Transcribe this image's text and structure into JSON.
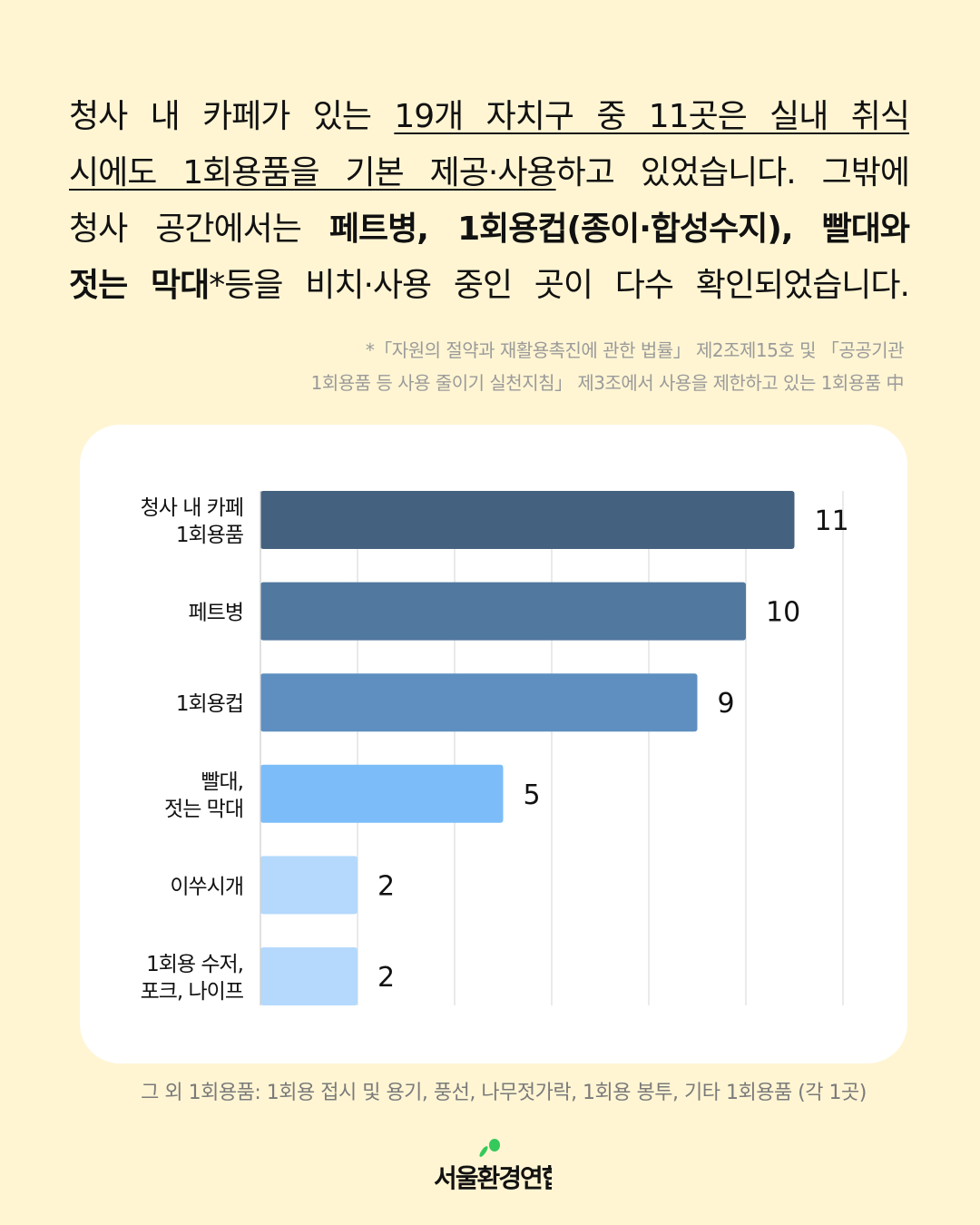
{
  "headline": {
    "l1a": "청사 내 카페가 있는 ",
    "l1b": "19개 자치구 중 11곳은 실내 취식",
    "l2a": "시에도 1회용품을 기본 제공·사용",
    "l2b": "하고 있었습니다. 그밖에",
    "l3a": "청사 공간에서는 ",
    "l3b": "페트병, 1회용컵(종이·합성수지), 빨대와",
    "l4a": "젓는 막대",
    "l4b": "*등을 비치·사용 중인 곳이 다수 확인되었습니다."
  },
  "note": {
    "line1": "*「자원의 절약과 재활용촉진에 관한 법률」 제2조제15호 및 「공공기관",
    "line2": "1회용품 등 사용 줄이기 실천지침」 제3조에서 사용을 제한하고 있는 1회용품 中"
  },
  "footer": "그 외 1회용품: 1회용 접시 및 용기, 풍선, 나무젓가락, 1회용 봉투, 기타 1회용품 (각 1곳)",
  "logo_text": "서울환경연합",
  "chart_data": {
    "type": "bar",
    "orientation": "horizontal",
    "categories": [
      [
        "청사 내 카페",
        "1회용품"
      ],
      [
        "페트병"
      ],
      [
        "1회용컵"
      ],
      [
        "빨대,",
        "젓는 막대"
      ],
      [
        "이쑤시개"
      ],
      [
        "1회용 수저,",
        "포크, 나이프"
      ]
    ],
    "values": [
      11,
      10,
      9,
      5,
      2,
      2
    ],
    "colors": [
      "#44617f",
      "#51789f",
      "#5f8fc0",
      "#7cbdf9",
      "#b4d9fc",
      "#b4d9fc"
    ],
    "xlim": [
      0,
      12
    ],
    "grid": true
  }
}
